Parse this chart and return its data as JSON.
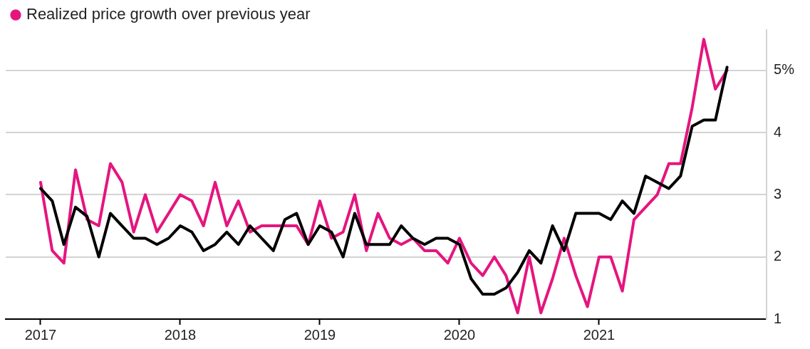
{
  "chart_data": {
    "type": "line",
    "x": [
      2017,
      2017.0833,
      2017.1667,
      2017.25,
      2017.3333,
      2017.4167,
      2017.5,
      2017.5833,
      2017.6667,
      2017.75,
      2017.8333,
      2017.9167,
      2018,
      2018.0833,
      2018.1667,
      2018.25,
      2018.3333,
      2018.4167,
      2018.5,
      2018.5833,
      2018.6667,
      2018.75,
      2018.8333,
      2018.9167,
      2019,
      2019.0833,
      2019.1667,
      2019.25,
      2019.3333,
      2019.4167,
      2019.5,
      2019.5833,
      2019.6667,
      2019.75,
      2019.8333,
      2019.9167,
      2020,
      2020.0833,
      2020.1667,
      2020.25,
      2020.3333,
      2020.4167,
      2020.5,
      2020.5833,
      2020.6667,
      2020.75,
      2020.8333,
      2020.9167,
      2021,
      2021.0833,
      2021.1667,
      2021.25,
      2021.3333,
      2021.4167,
      2021.5,
      2021.5833,
      2021.6667,
      2021.75,
      2021.8333,
      2021.9167
    ],
    "series": [
      {
        "color": "#000000",
        "values": [
          3.1,
          2.9,
          2.2,
          2.8,
          2.65,
          2.0,
          2.7,
          2.5,
          2.3,
          2.3,
          2.2,
          2.3,
          2.5,
          2.4,
          2.1,
          2.2,
          2.4,
          2.2,
          2.5,
          2.3,
          2.1,
          2.6,
          2.7,
          2.2,
          2.5,
          2.4,
          2.0,
          2.7,
          2.2,
          2.2,
          2.2,
          2.5,
          2.3,
          2.2,
          2.3,
          2.3,
          2.2,
          1.65,
          1.4,
          1.4,
          1.5,
          1.75,
          2.1,
          1.9,
          2.5,
          2.1,
          2.7,
          2.7,
          2.7,
          2.6,
          2.9,
          2.7,
          3.3,
          3.2,
          3.1,
          3.3,
          4.1,
          4.2,
          4.2,
          5.05
        ]
      },
      {
        "name": "Realized price growth over previous year",
        "color": "#e5157f",
        "values": [
          3.2,
          2.1,
          1.9,
          3.4,
          2.6,
          2.5,
          3.5,
          3.2,
          2.4,
          3.0,
          2.4,
          2.7,
          3.0,
          2.9,
          2.5,
          3.2,
          2.5,
          2.9,
          2.4,
          2.5,
          2.5,
          2.5,
          2.5,
          2.2,
          2.9,
          2.3,
          2.4,
          3.0,
          2.1,
          2.7,
          2.3,
          2.2,
          2.3,
          2.1,
          2.1,
          1.9,
          2.3,
          1.9,
          1.7,
          2.0,
          1.7,
          1.1,
          2.0,
          1.1,
          1.65,
          2.3,
          1.7,
          1.2,
          2.0,
          2.0,
          1.45,
          2.6,
          2.8,
          3.0,
          3.5,
          3.5,
          4.4,
          5.5,
          4.7,
          5.0
        ]
      }
    ],
    "xlim": [
      2016.75,
      2022.2
    ],
    "xticks": [
      {
        "value": 2017,
        "label": "2017"
      },
      {
        "value": 2018,
        "label": "2018"
      },
      {
        "value": 2019,
        "label": "2019"
      },
      {
        "value": 2020,
        "label": "2020"
      },
      {
        "value": 2021,
        "label": "2021"
      }
    ],
    "ylim": [
      1,
      5.65
    ],
    "yticks": [
      1,
      2,
      3,
      4,
      {
        "value": 5,
        "label": "5%"
      }
    ],
    "grid": "y",
    "legend": "top left",
    "marker": "none",
    "line_style": "solid"
  }
}
